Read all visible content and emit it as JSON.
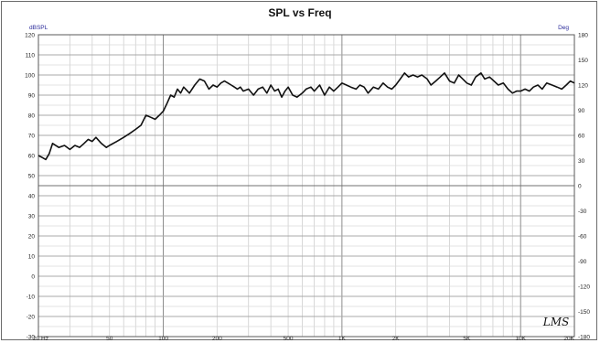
{
  "chart_data": {
    "type": "line",
    "title": "SPL vs Freq",
    "left_unit": "dBSPL",
    "right_unit": "Deg",
    "x_scale": "log",
    "xlim": [
      20,
      20000
    ],
    "ylim": [
      -30,
      120
    ],
    "right_ylim": [
      -180,
      180
    ],
    "grid": true,
    "x_ticks": [
      {
        "value": 20,
        "label": "20 Hz"
      },
      {
        "value": 50,
        "label": "50"
      },
      {
        "value": 100,
        "label": "100"
      },
      {
        "value": 200,
        "label": "200"
      },
      {
        "value": 500,
        "label": "500"
      },
      {
        "value": 1000,
        "label": "1K"
      },
      {
        "value": 2000,
        "label": "2K"
      },
      {
        "value": 5000,
        "label": "5K"
      },
      {
        "value": 10000,
        "label": "10K"
      },
      {
        "value": 20000,
        "label": "20K"
      }
    ],
    "y_ticks": [
      "120",
      "110",
      "100",
      "90",
      "80",
      "70",
      "60",
      "50",
      "40",
      "30",
      "20",
      "10",
      "0",
      "-10",
      "-20",
      "-30"
    ],
    "right_y_ticks": [
      "180",
      "150",
      "120",
      "90",
      "60",
      "30",
      "0",
      "-30",
      "-60",
      "-90",
      "-120",
      "-150",
      "-180"
    ],
    "series": [
      {
        "color": "#111111",
        "x": [
          20,
          21,
          22,
          23,
          24,
          26,
          28,
          30,
          32,
          34,
          36,
          38,
          40,
          42,
          45,
          48,
          50,
          55,
          60,
          65,
          70,
          75,
          80,
          85,
          90,
          95,
          100,
          105,
          110,
          115,
          120,
          125,
          130,
          140,
          150,
          160,
          170,
          180,
          190,
          200,
          210,
          220,
          230,
          240,
          250,
          260,
          270,
          280,
          300,
          320,
          340,
          360,
          380,
          400,
          420,
          440,
          460,
          480,
          500,
          530,
          560,
          600,
          630,
          670,
          700,
          750,
          800,
          850,
          900,
          950,
          1000,
          1060,
          1120,
          1200,
          1260,
          1330,
          1400,
          1500,
          1600,
          1700,
          1800,
          1900,
          2000,
          2120,
          2240,
          2360,
          2500,
          2650,
          2800,
          3000,
          3150,
          3350,
          3550,
          3750,
          4000,
          4250,
          4500,
          4750,
          5000,
          5300,
          5600,
          6000,
          6300,
          6700,
          7100,
          7500,
          8000,
          8500,
          9000,
          9500,
          10000,
          10600,
          11200,
          11800,
          12500,
          13200,
          14000,
          15000,
          16000,
          17000,
          18000,
          19000,
          20000
        ],
        "y": [
          60,
          59,
          58,
          61,
          66,
          64,
          65,
          63,
          65,
          64,
          66,
          68,
          67,
          69,
          66,
          64,
          65,
          67,
          69,
          71,
          73,
          75,
          80,
          79,
          78,
          80,
          82,
          86,
          90,
          89,
          93,
          91,
          94,
          91,
          95,
          98,
          97,
          93,
          95,
          94,
          96,
          97,
          96,
          95,
          94,
          93,
          94,
          92,
          93,
          90,
          93,
          94,
          91,
          95,
          92,
          93,
          89,
          92,
          94,
          90,
          89,
          91,
          93,
          94,
          92,
          95,
          90,
          94,
          92,
          94,
          96,
          95,
          94,
          93,
          95,
          94,
          91,
          94,
          93,
          96,
          94,
          93,
          95,
          98,
          101,
          99,
          100,
          99,
          100,
          98,
          95,
          97,
          99,
          101,
          97,
          96,
          100,
          98,
          96,
          95,
          99,
          101,
          98,
          99,
          97,
          95,
          96,
          93,
          91,
          92,
          92,
          93,
          92,
          94,
          95,
          93,
          96,
          95,
          94,
          93,
          95,
          97,
          96
        ]
      }
    ],
    "logo": "LMS"
  }
}
